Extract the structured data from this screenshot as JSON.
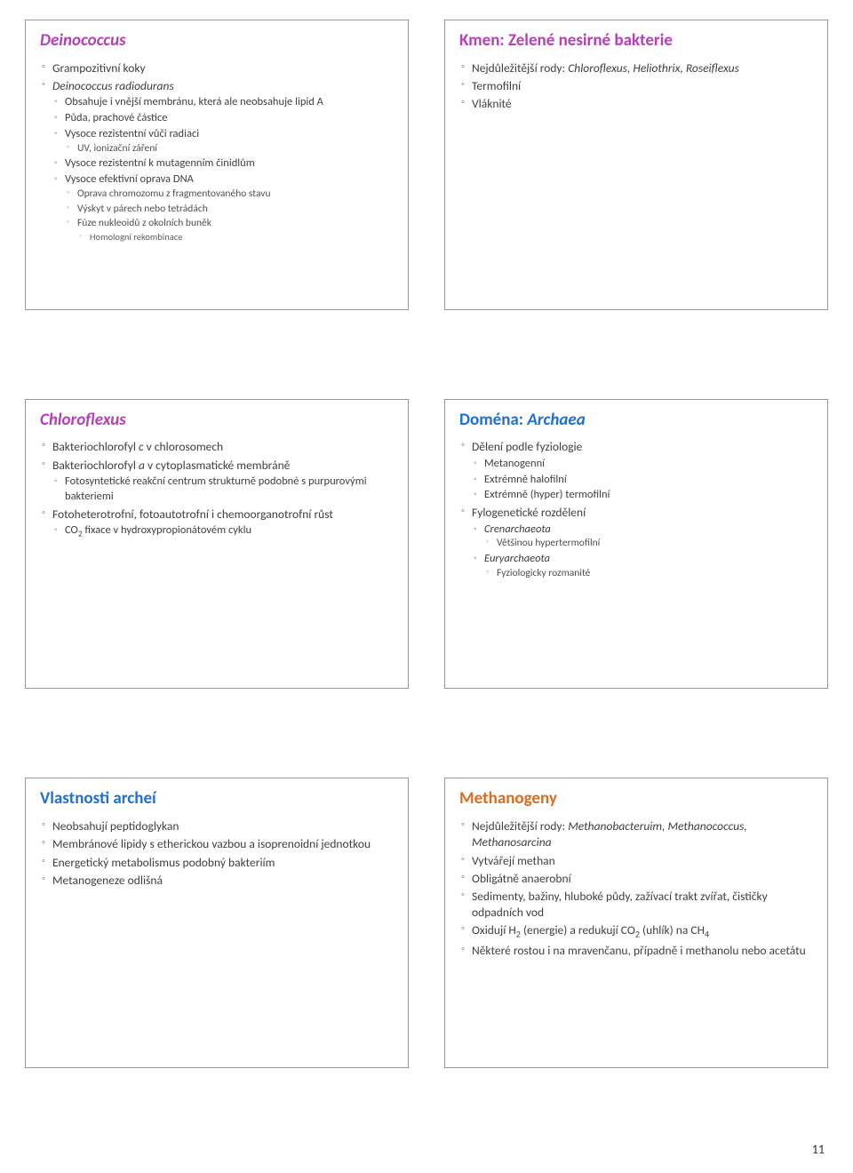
{
  "colors": {
    "title_purple": "#b83dba",
    "title_blue": "#1f6fd4",
    "title_orange": "#d96c1f",
    "body_text": "#404040",
    "sub_text": "#606060",
    "border": "#999999",
    "bullet": "#999999",
    "background": "#ffffff"
  },
  "typography": {
    "title_size_pt": 19,
    "l1_size_pt": 13.5,
    "l2_size_pt": 12.5,
    "l3_size_pt": 11.5,
    "l4_size_pt": 10.5,
    "font_family": "Calibri"
  },
  "page_number": "11",
  "slides": [
    {
      "title_html": "<span class='italic'>Deinococcus</span>",
      "title_color": "#b83dba",
      "content": [
        {
          "t": "Grampozitivní koky"
        },
        {
          "t": "<span class='italic'>Deinococcus radiodurans</span>",
          "children": [
            {
              "t": "Obsahuje i vnější membránu, která ale neobsahuje lipid A"
            },
            {
              "t": "Půda, prachové částice"
            },
            {
              "t": "Vysoce rezistentní vůči radiaci",
              "children": [
                {
                  "t": "UV, ionizační záření"
                }
              ]
            },
            {
              "t": "Vysoce rezistentní k mutagenním činidlům"
            },
            {
              "t": "Vysoce efektivní oprava DNA",
              "children": [
                {
                  "t": "Oprava chromozomu z fragmentovaného stavu"
                },
                {
                  "t": "Výskyt v párech nebo tetrádách"
                },
                {
                  "t": "Fúze nukleoidů z okolních buněk",
                  "children": [
                    {
                      "t": "Homologní rekombinace"
                    }
                  ]
                }
              ]
            }
          ]
        }
      ]
    },
    {
      "title_html": "Kmen: Zelené nesirné bakterie",
      "title_color": "#b83dba",
      "content": [
        {
          "t": "Nejdůležitější rody: <span class='italic'>Chloroflexus, Heliothrix, Roseiflexus</span>"
        },
        {
          "t": "Termofilní"
        },
        {
          "t": "Vláknité"
        }
      ]
    },
    {
      "title_html": "<span class='italic'>Chloroflexus</span>",
      "title_color": "#b83dba",
      "content": [
        {
          "t": "Bakteriochlorofyl <span class='italic'>c</span> v chlorosomech"
        },
        {
          "t": "Bakteriochlorofyl <span class='italic'>a</span> v cytoplasmatické membráně",
          "children": [
            {
              "t": "Fotosyntetické reakční centrum strukturně podobné s purpurovými bakteriemi"
            }
          ]
        },
        {
          "t": "Fotoheterotrofní, fotoautotrofní i chemoorganotrofní růst",
          "children": [
            {
              "t": "CO<sub>2</sub> fixace v hydroxypropionátovém cyklu"
            }
          ]
        }
      ]
    },
    {
      "title_html": "Doména: <span class='italic'>Archaea</span>",
      "title_color": "#1f6fd4",
      "content": [
        {
          "t": "Dělení podle fyziologie",
          "children": [
            {
              "t": "Metanogenní"
            },
            {
              "t": "Extrémně halofilní"
            },
            {
              "t": "Extrémně (hyper) termofilní"
            }
          ]
        },
        {
          "t": "Fylogenetické rozdělení",
          "children": [
            {
              "t": "<span class='italic'>Crenarchaeota</span>",
              "children": [
                {
                  "t": "Většinou hypertermofilní"
                }
              ]
            },
            {
              "t": "<span class='italic'>Euryarchaeota</span>",
              "children": [
                {
                  "t": "Fyziologicky rozmanité"
                }
              ]
            }
          ]
        }
      ]
    },
    {
      "title_html": "Vlastnosti archeí",
      "title_color": "#1f6fd4",
      "content": [
        {
          "t": "Neobsahují peptidoglykan"
        },
        {
          "t": "Membránové lipidy s etherickou vazbou a isoprenoidní jednotkou"
        },
        {
          "t": "Energetický metabolismus podobný bakteriím"
        },
        {
          "t": "Metanogeneze odlišná"
        }
      ]
    },
    {
      "title_html": "Methanogeny",
      "title_color": "#d96c1f",
      "content": [
        {
          "t": "Nejdůležitější rody: <span class='italic'>Methanobacteruim, Methanococcus, Methanosarcina</span>"
        },
        {
          "t": "Vytvářejí methan"
        },
        {
          "t": "Obligátně anaerobní"
        },
        {
          "t": "Sedimenty, bažiny, hluboké půdy, zažívací trakt zvířat, čističky odpadních vod"
        },
        {
          "t": "Oxidují H<sub>2</sub> (energie) a redukují CO<sub>2</sub> (uhlík) na CH<sub>4</sub>"
        },
        {
          "t": "Některé rostou i na mravenčanu, případně i methanolu nebo acetátu"
        }
      ]
    }
  ]
}
